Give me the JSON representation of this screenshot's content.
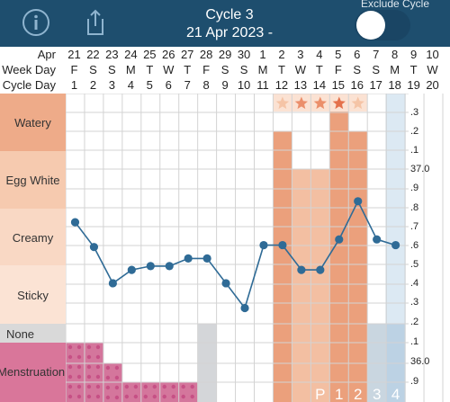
{
  "header": {
    "title": "Cycle 3",
    "date_range": "21 Apr 2023 -",
    "exclude_label": "Exclude Cycle",
    "exclude_toggle_on": true,
    "icons": [
      "info-icon",
      "share-icon"
    ]
  },
  "row_labels": {
    "month": "Apr",
    "weekday": "Week Day",
    "cycleday": "Cycle Day"
  },
  "dates": [
    "21",
    "22",
    "23",
    "24",
    "25",
    "26",
    "27",
    "28",
    "29",
    "30",
    "1",
    "2",
    "3",
    "4",
    "5",
    "6",
    "7",
    "8",
    "9",
    "10"
  ],
  "weekdays": [
    "F",
    "S",
    "S",
    "M",
    "T",
    "W",
    "T",
    "F",
    "S",
    "S",
    "M",
    "T",
    "W",
    "T",
    "F",
    "S",
    "S",
    "M",
    "T",
    "W"
  ],
  "cycle_days": [
    "1",
    "2",
    "3",
    "4",
    "5",
    "6",
    "7",
    "8",
    "9",
    "10",
    "11",
    "12",
    "13",
    "14",
    "15",
    "16",
    "17",
    "18",
    "19",
    "20"
  ],
  "categories": [
    "Watery",
    "Egg White",
    "Creamy",
    "Sticky",
    "None",
    "Menstruation"
  ],
  "scale_labels": [
    ".3",
    ".2",
    ".1",
    "37.0",
    ".9",
    ".8",
    ".7",
    ".6",
    ".5",
    ".4",
    ".3",
    ".2",
    ".1",
    "36.0",
    ".9"
  ],
  "peak_markers": [
    "P",
    "1",
    "2",
    "3",
    "4"
  ],
  "temperatures": [
    36.74,
    36.61,
    36.42,
    36.49,
    36.51,
    36.51,
    36.55,
    36.55,
    36.42,
    36.29,
    36.62,
    36.62,
    36.49,
    36.49,
    36.65,
    36.85,
    36.65,
    36.62
  ],
  "colors": {
    "header_bg": "#1e4e6e",
    "line": "#2f6b96",
    "today": "#dce9f3"
  }
}
